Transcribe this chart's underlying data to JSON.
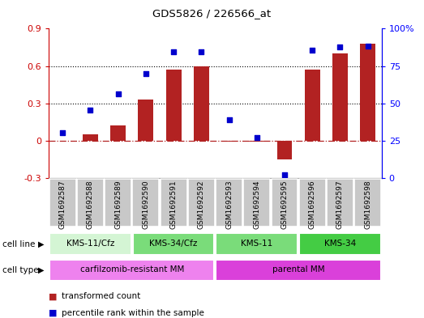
{
  "title": "GDS5826 / 226566_at",
  "samples": [
    "GSM1692587",
    "GSM1692588",
    "GSM1692589",
    "GSM1692590",
    "GSM1692591",
    "GSM1692592",
    "GSM1692593",
    "GSM1692594",
    "GSM1692595",
    "GSM1692596",
    "GSM1692597",
    "GSM1692598"
  ],
  "transformed_count": [
    0.0,
    0.05,
    0.12,
    0.33,
    0.57,
    0.6,
    -0.01,
    -0.01,
    -0.15,
    0.57,
    0.7,
    0.78
  ],
  "percentile_rank": [
    0.305,
    0.455,
    0.565,
    0.7,
    0.845,
    0.845,
    0.39,
    0.27,
    0.02,
    0.855,
    0.875,
    0.885
  ],
  "bar_color": "#B22222",
  "dot_color": "#0000CD",
  "cell_lines": [
    {
      "label": "KMS-11/Cfz",
      "start": 0,
      "end": 3,
      "color": "#d4f5d4"
    },
    {
      "label": "KMS-34/Cfz",
      "start": 3,
      "end": 6,
      "color": "#7adc7a"
    },
    {
      "label": "KMS-11",
      "start": 6,
      "end": 9,
      "color": "#7adc7a"
    },
    {
      "label": "KMS-34",
      "start": 9,
      "end": 12,
      "color": "#44cc44"
    }
  ],
  "cell_types": [
    {
      "label": "carfilzomib-resistant MM",
      "start": 0,
      "end": 6,
      "color": "#ee82ee"
    },
    {
      "label": "parental MM",
      "start": 6,
      "end": 12,
      "color": "#da40da"
    }
  ],
  "ylim_left": [
    -0.3,
    0.9
  ],
  "ylim_right": [
    0.0,
    1.0
  ],
  "yticks_left": [
    -0.3,
    0.0,
    0.3,
    0.6,
    0.9
  ],
  "ytick_labels_left": [
    "-0.3",
    "0",
    "0.3",
    "0.6",
    "0.9"
  ],
  "yticks_right": [
    0.0,
    0.25,
    0.5,
    0.75,
    1.0
  ],
  "ytick_labels_right": [
    "0",
    "25",
    "50",
    "75",
    "100%"
  ],
  "zero_line_y": 0.0,
  "hlines": [
    0.3,
    0.6
  ],
  "sample_box_color": "#c8c8c8",
  "legend_items": [
    {
      "label": "transformed count",
      "color": "#B22222"
    },
    {
      "label": "percentile rank within the sample",
      "color": "#0000CD"
    }
  ]
}
